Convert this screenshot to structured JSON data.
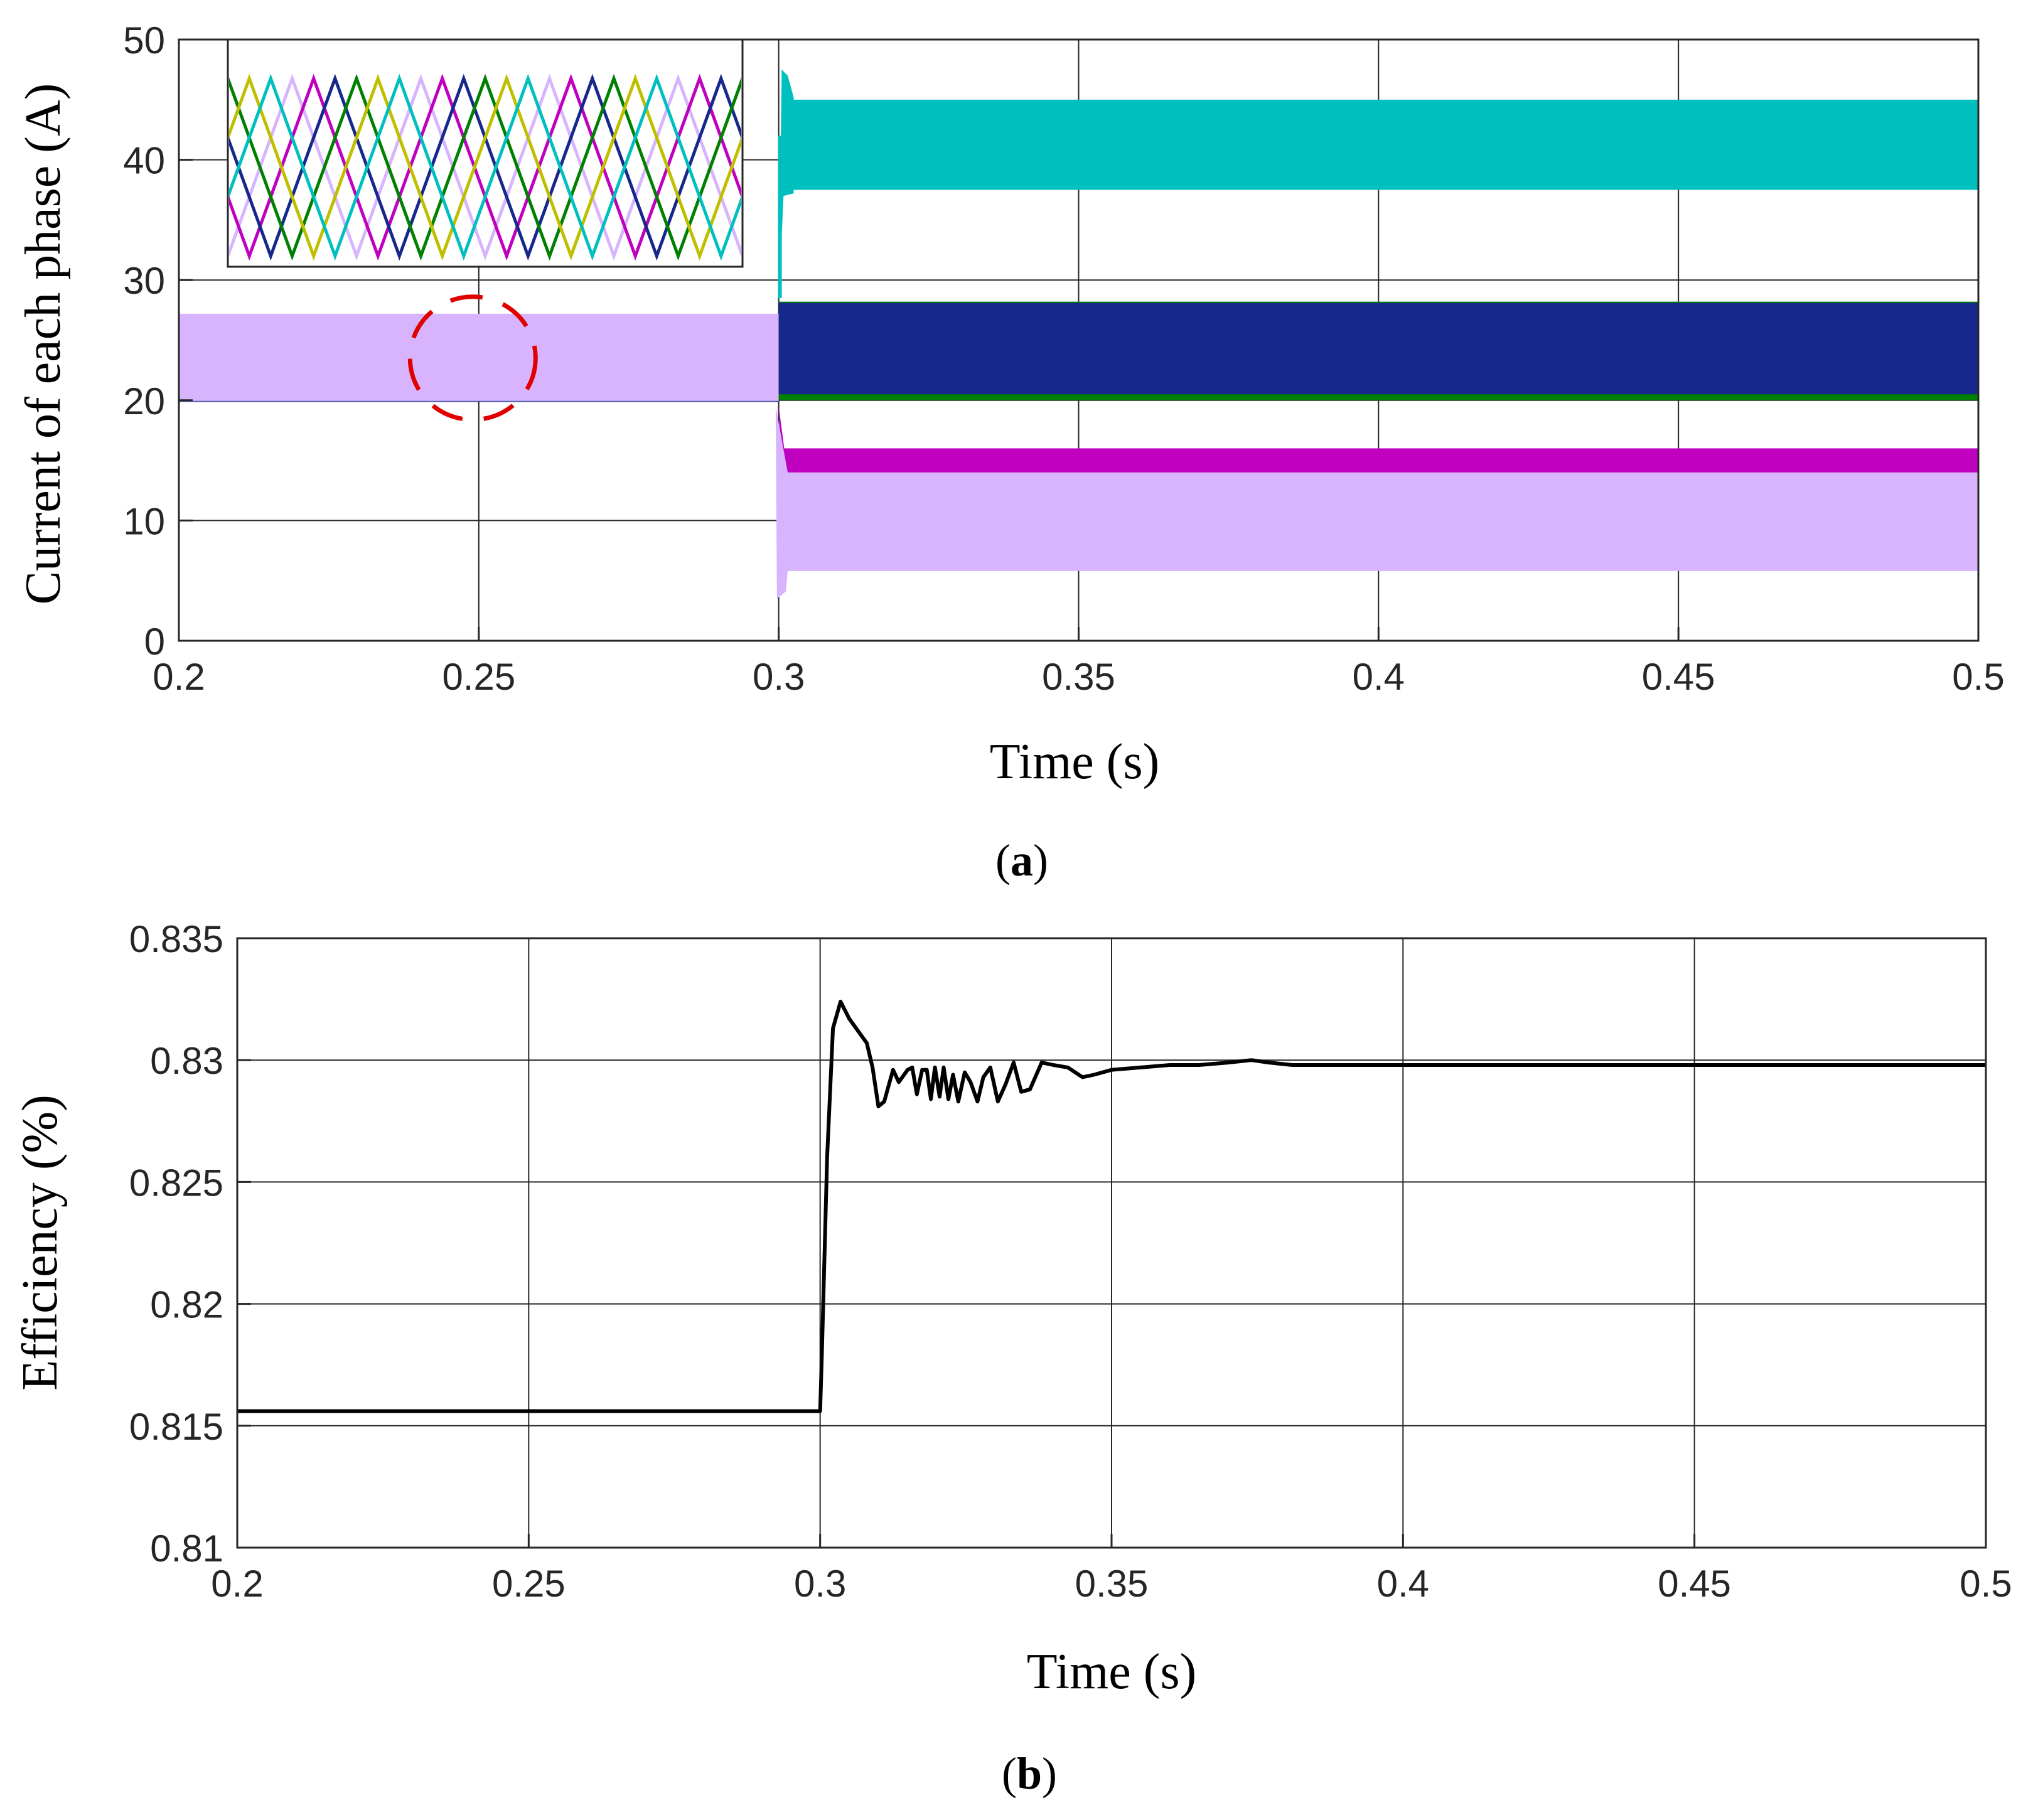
{
  "chart_data": [
    {
      "id": "a",
      "type": "line",
      "caption": {
        "open": "(",
        "letter": "a",
        "close": ")"
      },
      "xlabel": "Time (s)",
      "ylabel": "Current of each phase (A)",
      "xlim": [
        0.2,
        0.5
      ],
      "ylim": [
        0,
        50
      ],
      "xticks": [
        0.2,
        0.25,
        0.3,
        0.35,
        0.4,
        0.45,
        0.5
      ],
      "xtick_labels": [
        "0.2",
        "0.25",
        "0.3",
        "0.35",
        "0.4",
        "0.45",
        "0.5"
      ],
      "yticks": [
        0,
        10,
        20,
        30,
        40,
        50
      ],
      "ytick_labels": [
        "0",
        "10",
        "20",
        "30",
        "40",
        "50"
      ],
      "grid": true,
      "switch_time": 0.3,
      "series": [
        {
          "name": "phase-cyan",
          "color": "#00BFBF",
          "before": [
            20,
            27
          ],
          "after": [
            37.5,
            45
          ],
          "peak": 47.5
        },
        {
          "name": "phase-green",
          "color": "#008000",
          "before": [
            20,
            27
          ],
          "after": [
            20,
            28.2
          ]
        },
        {
          "name": "phase-blue",
          "color": "#17288C",
          "before": [
            20,
            27
          ],
          "after": [
            20.5,
            28.2
          ]
        },
        {
          "name": "phase-magenta",
          "color": "#BF00BF",
          "before": [
            20,
            27
          ],
          "after": [
            13.8,
            16
          ],
          "dip": 12.5
        },
        {
          "name": "phase-lavender",
          "color": "#D8B4FF",
          "before": [
            19.9,
            27.2
          ],
          "after": [
            5.8,
            14
          ],
          "dip": 3.5
        }
      ],
      "zoom_marker": {
        "x": 0.249,
        "y": 23.5,
        "color": "#E00000"
      },
      "inset": {
        "description": "zoomed phase currents",
        "colors": [
          "#D8B4FF",
          "#BF00BF",
          "#17288C",
          "#008000",
          "#BFBF00",
          "#00BFBF"
        ]
      }
    },
    {
      "id": "b",
      "type": "line",
      "caption": {
        "open": "(",
        "letter": "b",
        "close": ")"
      },
      "xlabel": "Time (s)",
      "ylabel": "Efficiency (%)",
      "xlim": [
        0.2,
        0.5
      ],
      "ylim": [
        0.81,
        0.835
      ],
      "xticks": [
        0.2,
        0.25,
        0.3,
        0.35,
        0.4,
        0.45,
        0.5
      ],
      "xtick_labels": [
        "0.2",
        "0.25",
        "0.3",
        "0.35",
        "0.4",
        "0.45",
        "0.5"
      ],
      "yticks": [
        0.81,
        0.815,
        0.82,
        0.825,
        0.83,
        0.835
      ],
      "ytick_labels": [
        "0.81",
        "0.815",
        "0.82",
        "0.825",
        "0.83",
        "0.835"
      ],
      "grid": true,
      "series": [
        {
          "name": "efficiency",
          "color": "#000000",
          "x": [
            0.2,
            0.25,
            0.3,
            0.3003,
            0.3012,
            0.3022,
            0.3035,
            0.305,
            0.3065,
            0.308,
            0.309,
            0.31,
            0.311,
            0.3125,
            0.3135,
            0.315,
            0.3158,
            0.3166,
            0.3175,
            0.3183,
            0.319,
            0.3197,
            0.3205,
            0.3212,
            0.322,
            0.3228,
            0.3237,
            0.3248,
            0.3258,
            0.327,
            0.328,
            0.3292,
            0.3305,
            0.3318,
            0.3332,
            0.3345,
            0.336,
            0.338,
            0.34,
            0.3425,
            0.345,
            0.347,
            0.35,
            0.355,
            0.36,
            0.365,
            0.37,
            0.374,
            0.377,
            0.381,
            0.385,
            0.39,
            0.4,
            0.45,
            0.5
          ],
          "y": [
            0.8156,
            0.8156,
            0.8156,
            0.818,
            0.826,
            0.8313,
            0.8324,
            0.8317,
            0.8312,
            0.8307,
            0.8297,
            0.8281,
            0.8283,
            0.8296,
            0.8291,
            0.8296,
            0.8297,
            0.8286,
            0.8296,
            0.8296,
            0.8284,
            0.8297,
            0.8285,
            0.8297,
            0.8284,
            0.8294,
            0.8283,
            0.8295,
            0.8291,
            0.8283,
            0.8293,
            0.8297,
            0.8283,
            0.829,
            0.8299,
            0.8287,
            0.8288,
            0.8299,
            0.8298,
            0.8297,
            0.8293,
            0.8294,
            0.8296,
            0.8297,
            0.8298,
            0.8298,
            0.8299,
            0.83,
            0.8299,
            0.8298,
            0.8298,
            0.8298,
            0.8298,
            0.8298,
            0.8298
          ]
        }
      ]
    }
  ]
}
